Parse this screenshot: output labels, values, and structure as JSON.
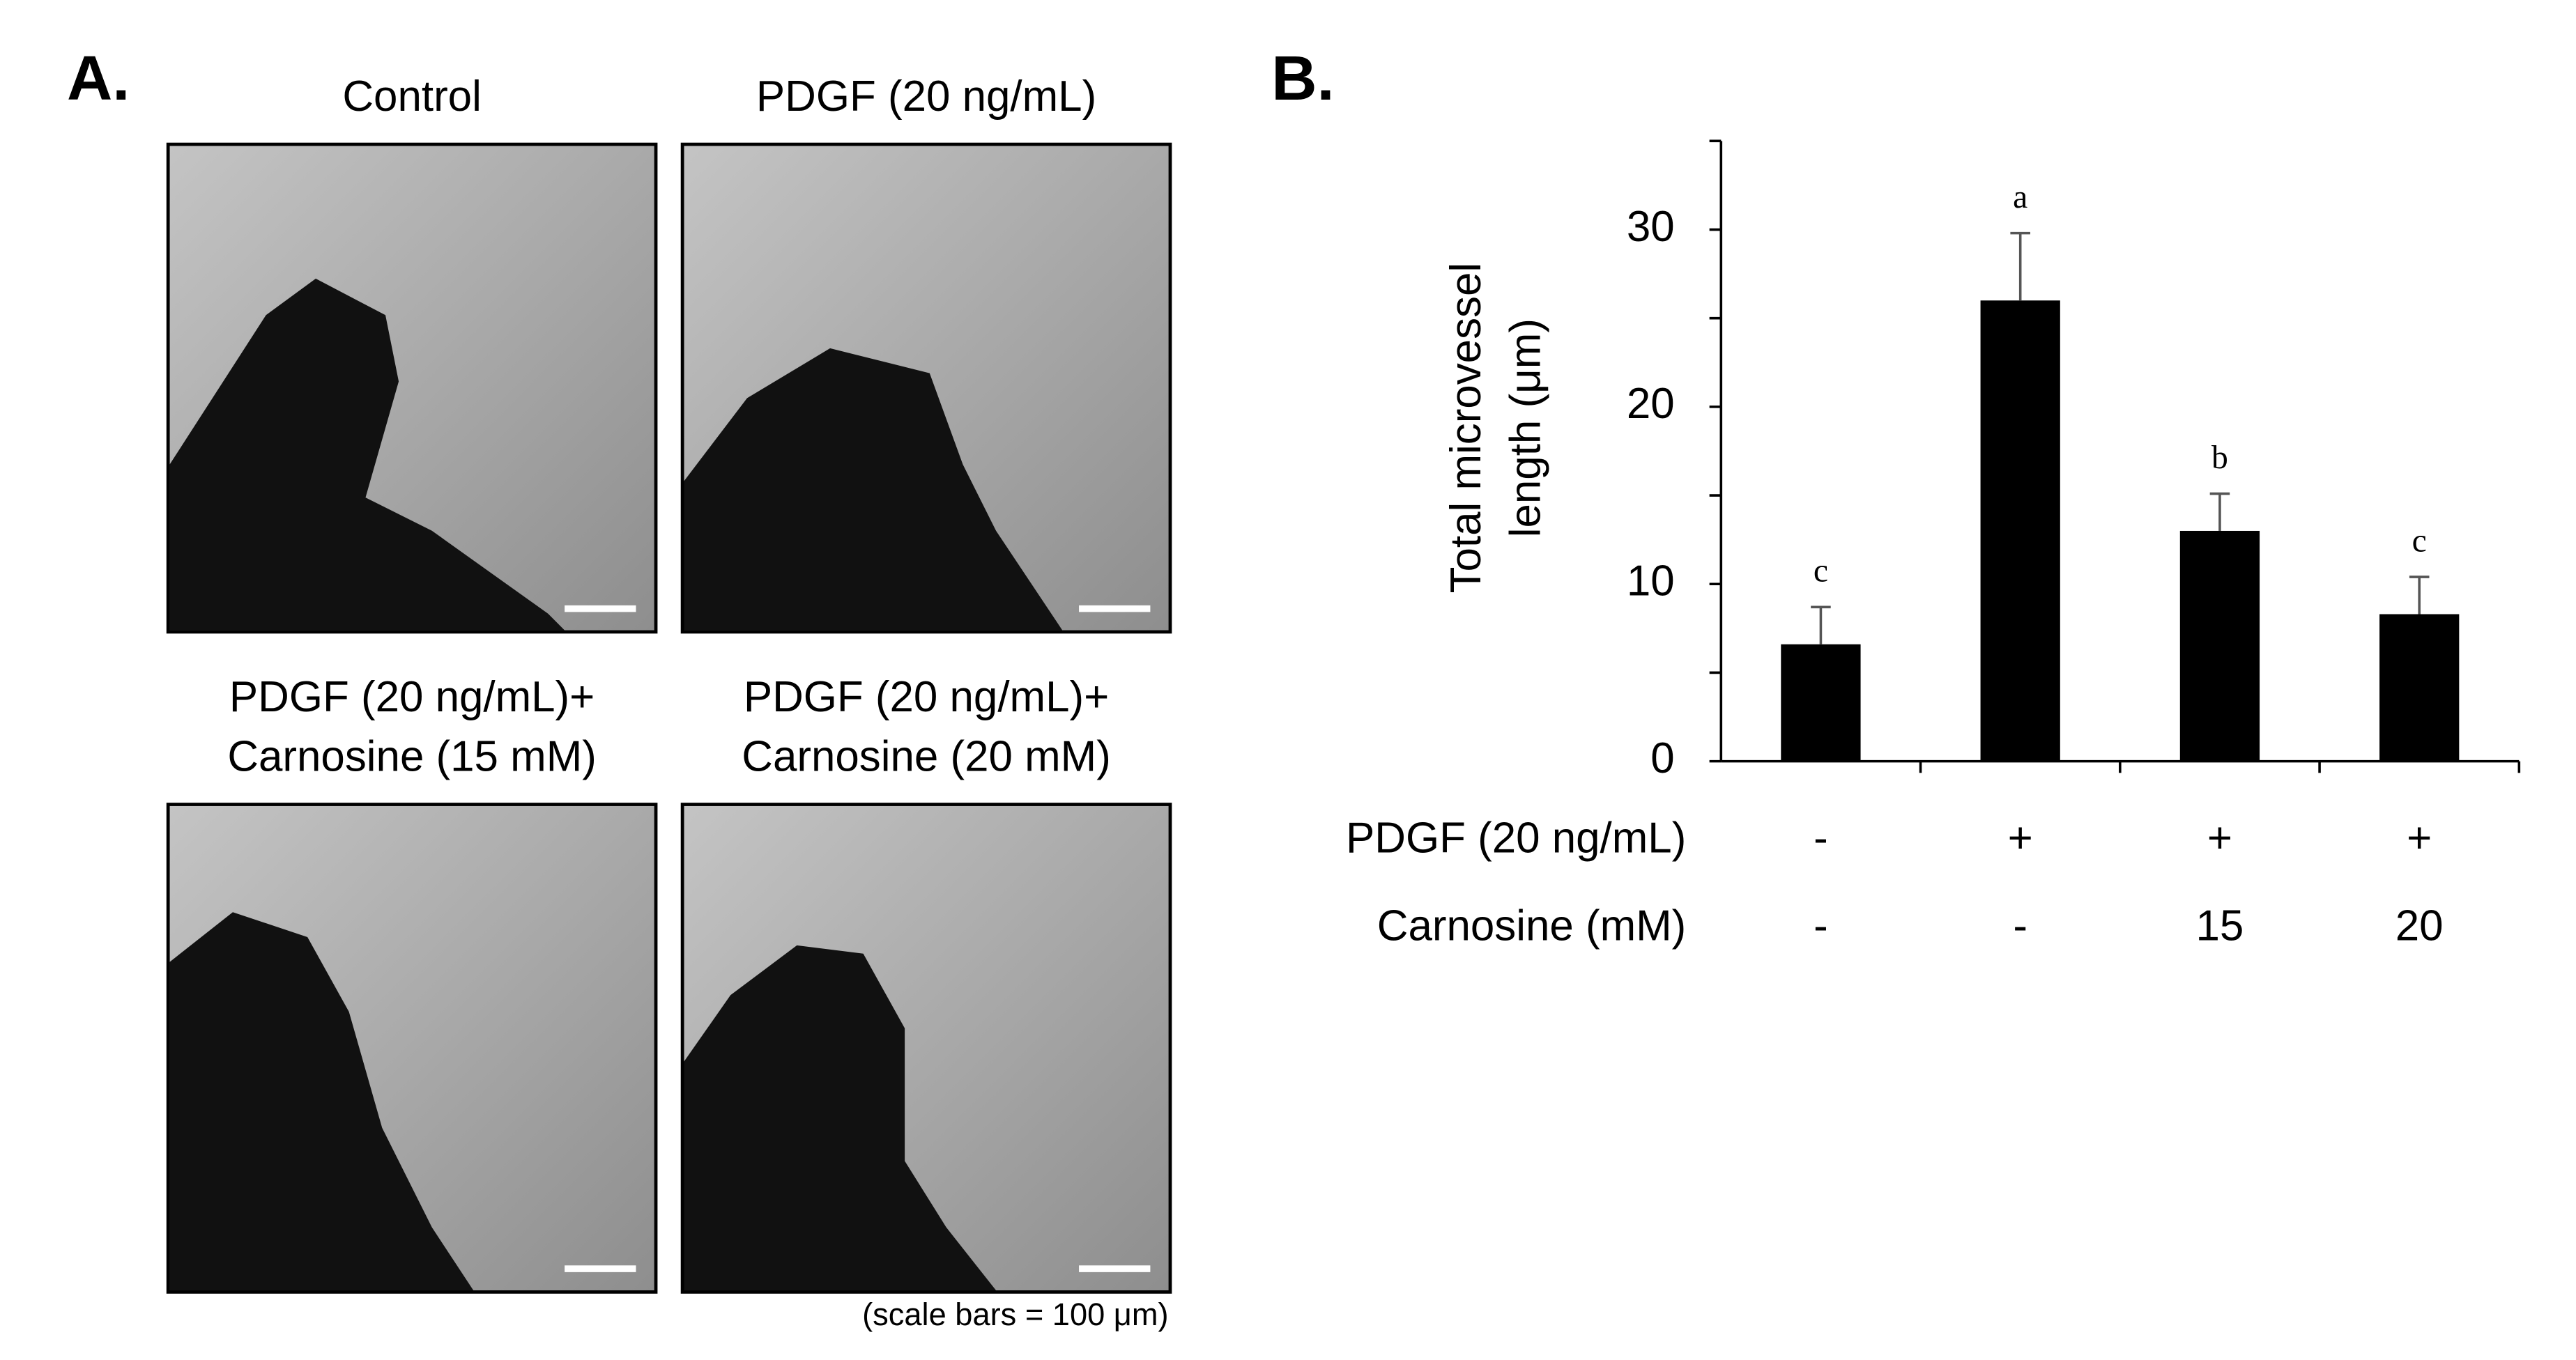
{
  "panel_a": {
    "label": "A.",
    "images": [
      {
        "title": [
          "Control"
        ]
      },
      {
        "title": [
          "PDGF (20 ng/mL)"
        ]
      },
      {
        "title": [
          "PDGF (20 ng/mL)+",
          "Carnosine (15 mM)"
        ]
      },
      {
        "title": [
          "PDGF (20 ng/mL)+",
          "Carnosine (20 mM)"
        ]
      }
    ],
    "caption": "(scale bars = 100 μm)"
  },
  "chart_data": {
    "type": "bar",
    "panel_label": "B.",
    "ylabel": [
      "Total microvessel",
      "length (μm)"
    ],
    "categories": [
      null,
      null,
      null,
      null
    ],
    "values": [
      6.6,
      26.0,
      13.0,
      8.3
    ],
    "errors": [
      2.1,
      3.8,
      2.1,
      2.1
    ],
    "significance": [
      "c",
      "a",
      "b",
      "c"
    ],
    "color": "#000000",
    "ylim": [
      0,
      35
    ],
    "yticks": [
      0,
      10,
      20,
      30
    ],
    "yminorticks": [
      5,
      15,
      25,
      35
    ],
    "grid": false,
    "conditions": [
      {
        "name": "PDGF (20 ng/mL)",
        "values": [
          "-",
          "+",
          "+",
          "+"
        ]
      },
      {
        "name": "Carnosine (mM)",
        "values": [
          "-",
          "-",
          "15",
          "20"
        ]
      }
    ]
  }
}
